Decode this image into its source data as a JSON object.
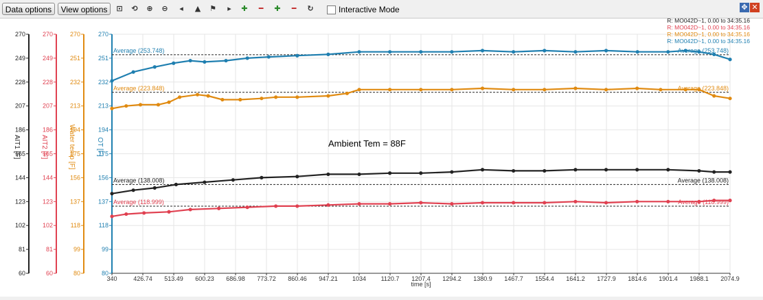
{
  "toolbar": {
    "data_options": "Data options",
    "view_options": "View options",
    "icons": [
      "zoom-box-icon",
      "zoom-reset-icon",
      "zoom-in-icon",
      "zoom-out-icon",
      "pan-left-icon",
      "cursor-up-icon",
      "cursor-flag-icon",
      "play-forward-icon",
      "add-x-cursor-icon",
      "remove-x-cursor-icon",
      "add-y-cursor-icon",
      "remove-y-cursor-icon",
      "refresh-icon"
    ],
    "interactive_mode_label": "Interactive Mode",
    "interactive_mode_checked": false
  },
  "colors": {
    "ait1": "#222222",
    "ait2": "#e04050",
    "water": "#e08a10",
    "ot": "#1f7fb0",
    "grid": "#e6e6e6"
  },
  "chart_data": {
    "type": "line",
    "xlabel": "time [s]",
    "xlim": [
      340,
      2074.9
    ],
    "x_ticks": [
      "340",
      "426.74",
      "513.49",
      "600.23",
      "686.98",
      "773.72",
      "860.46",
      "947.21",
      "1034",
      "1120.7",
      "1207.4",
      "1294.2",
      "1380.9",
      "1467.7",
      "1554.4",
      "1641.2",
      "1727.9",
      "1814.6",
      "1901.4",
      "1988.1",
      "2074.9"
    ],
    "annotation": "Ambient Tem = 88F",
    "legend_position": "top-right",
    "legend": [
      "R:  MO042D~1, 0.00 to 34:35.16",
      "R:  MO042D~1, 0.00 to 34:35.16",
      "R:  MO042D~1, 0.00 to 34:35.16",
      "R:  MO042D~1, 0.00 to 34:35.16"
    ],
    "axes": [
      {
        "key": "ait1",
        "label": "AIT1 [F]",
        "ylim": [
          60,
          270
        ],
        "ticks": [
          "60",
          "81",
          "102",
          "123",
          "144",
          "165",
          "186",
          "207",
          "228",
          "249",
          "270"
        ]
      },
      {
        "key": "ait2",
        "label": "AIT2 [F]",
        "ylim": [
          60,
          270
        ],
        "ticks": [
          "60",
          "81",
          "102",
          "123",
          "144",
          "165",
          "186",
          "207",
          "228",
          "249",
          "270"
        ]
      },
      {
        "key": "water",
        "label": "Water temp [F]",
        "ylim": [
          80,
          270
        ],
        "ticks": [
          "80",
          "99",
          "118",
          "137",
          "156",
          "175",
          "194",
          "213",
          "232",
          "251",
          "270"
        ]
      },
      {
        "key": "ot",
        "label": "OT [F]",
        "ylim": [
          80,
          270
        ],
        "ticks": [
          "80",
          "99",
          "118",
          "137",
          "156",
          "175",
          "194",
          "213",
          "232",
          "251",
          "270"
        ]
      }
    ],
    "series": [
      {
        "key": "ot",
        "axis": 3,
        "x": [
          340,
          400,
          460,
          513,
          560,
          600,
          660,
          720,
          780,
          860,
          947,
          1034,
          1120,
          1207,
          1294,
          1380,
          1467,
          1554,
          1641,
          1727,
          1815,
          1901,
          1950,
          1988,
          2030,
          2074.9
        ],
        "y": [
          233,
          240,
          244,
          247,
          249,
          248,
          249,
          251,
          252,
          253,
          254,
          256,
          256,
          256,
          256,
          257,
          256,
          257,
          256,
          257,
          256,
          256,
          257,
          256,
          254,
          250
        ],
        "average": 253.748,
        "average_label": "Average (253.748)"
      },
      {
        "key": "water",
        "axis": 2,
        "x": [
          340,
          380,
          420,
          470,
          500,
          530,
          580,
          610,
          650,
          700,
          760,
          800,
          860,
          947,
          1000,
          1034,
          1120,
          1207,
          1294,
          1380,
          1467,
          1554,
          1641,
          1727,
          1814,
          1880,
          1950,
          1988,
          2030,
          2074.9
        ],
        "y": [
          211,
          213,
          214,
          214,
          216,
          220,
          222,
          221,
          218,
          218,
          219,
          220,
          220,
          221,
          223,
          226,
          226,
          226,
          226,
          227,
          226,
          226,
          227,
          226,
          227,
          226,
          226,
          226,
          221,
          219
        ],
        "average": 223.848,
        "average_label": "Average (223.848)"
      },
      {
        "key": "ait1",
        "axis": 0,
        "x": [
          340,
          400,
          460,
          520,
          600,
          680,
          760,
          860,
          947,
          1034,
          1120,
          1207,
          1294,
          1380,
          1467,
          1554,
          1641,
          1727,
          1814,
          1901,
          1988,
          2030,
          2074.9
        ],
        "y": [
          130,
          133,
          135,
          138,
          140,
          142,
          144,
          145,
          147,
          147,
          148,
          148,
          149,
          151,
          150,
          150,
          151,
          151,
          151,
          151,
          150,
          149,
          149
        ],
        "average": 138.008,
        "average_label": "Average (138.008)"
      },
      {
        "key": "ait2",
        "axis": 1,
        "x": [
          340,
          380,
          430,
          500,
          560,
          640,
          720,
          800,
          860,
          947,
          1034,
          1120,
          1207,
          1294,
          1380,
          1467,
          1554,
          1641,
          1727,
          1814,
          1901,
          1988,
          2030,
          2074.9
        ],
        "y": [
          110,
          112,
          113,
          114,
          116,
          117,
          118,
          119,
          119,
          120,
          121,
          121,
          122,
          121,
          122,
          122,
          122,
          123,
          122,
          123,
          123,
          123,
          124,
          124
        ],
        "average": 118.999,
        "average_label": "Average (118.999)"
      }
    ]
  }
}
